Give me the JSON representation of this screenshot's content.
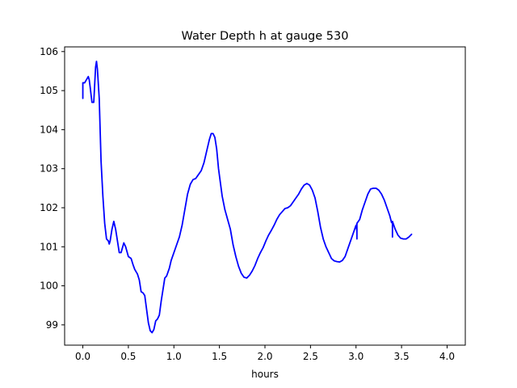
{
  "chart_data": {
    "type": "line",
    "title": "Water Depth h at gauge 530",
    "xlabel": "hours",
    "ylabel": "",
    "xlim": [
      -0.2,
      4.2
    ],
    "ylim": [
      98.48,
      106.12
    ],
    "xticks": [
      0.0,
      0.5,
      1.0,
      1.5,
      2.0,
      2.5,
      3.0,
      3.5,
      4.0
    ],
    "xtick_labels": [
      "0.0",
      "0.5",
      "1.0",
      "1.5",
      "2.0",
      "2.5",
      "3.0",
      "3.5",
      "4.0"
    ],
    "yticks": [
      99,
      100,
      101,
      102,
      103,
      104,
      105,
      106
    ],
    "ytick_labels": [
      "99",
      "100",
      "101",
      "102",
      "103",
      "104",
      "105",
      "106"
    ],
    "grid": false,
    "series": [
      {
        "color": "#0000ff",
        "points": [
          [
            0.0,
            104.8
          ],
          [
            0.0,
            105.2
          ],
          [
            0.02,
            105.2
          ],
          [
            0.04,
            105.28
          ],
          [
            0.06,
            105.36
          ],
          [
            0.07,
            105.28
          ],
          [
            0.08,
            105.1
          ],
          [
            0.1,
            104.7
          ],
          [
            0.12,
            104.7
          ],
          [
            0.14,
            105.6
          ],
          [
            0.15,
            105.75
          ],
          [
            0.16,
            105.55
          ],
          [
            0.18,
            104.8
          ],
          [
            0.2,
            103.2
          ],
          [
            0.22,
            102.3
          ],
          [
            0.24,
            101.6
          ],
          [
            0.26,
            101.2
          ],
          [
            0.28,
            101.15
          ],
          [
            0.29,
            101.07
          ],
          [
            0.3,
            101.15
          ],
          [
            0.32,
            101.45
          ],
          [
            0.34,
            101.65
          ],
          [
            0.36,
            101.45
          ],
          [
            0.38,
            101.15
          ],
          [
            0.4,
            100.85
          ],
          [
            0.42,
            100.85
          ],
          [
            0.45,
            101.1
          ],
          [
            0.47,
            101.0
          ],
          [
            0.5,
            100.75
          ],
          [
            0.53,
            100.7
          ],
          [
            0.55,
            100.55
          ],
          [
            0.57,
            100.42
          ],
          [
            0.6,
            100.3
          ],
          [
            0.62,
            100.15
          ],
          [
            0.64,
            99.85
          ],
          [
            0.66,
            99.82
          ],
          [
            0.68,
            99.75
          ],
          [
            0.7,
            99.4
          ],
          [
            0.72,
            99.05
          ],
          [
            0.74,
            98.85
          ],
          [
            0.76,
            98.8
          ],
          [
            0.78,
            98.88
          ],
          [
            0.8,
            99.1
          ],
          [
            0.82,
            99.15
          ],
          [
            0.84,
            99.25
          ],
          [
            0.86,
            99.6
          ],
          [
            0.88,
            99.9
          ],
          [
            0.9,
            100.2
          ],
          [
            0.92,
            100.25
          ],
          [
            0.95,
            100.45
          ],
          [
            0.97,
            100.65
          ],
          [
            1.0,
            100.85
          ],
          [
            1.03,
            101.05
          ],
          [
            1.06,
            101.25
          ],
          [
            1.09,
            101.55
          ],
          [
            1.12,
            101.95
          ],
          [
            1.15,
            102.35
          ],
          [
            1.18,
            102.6
          ],
          [
            1.21,
            102.72
          ],
          [
            1.24,
            102.75
          ],
          [
            1.27,
            102.85
          ],
          [
            1.3,
            102.95
          ],
          [
            1.33,
            103.15
          ],
          [
            1.36,
            103.45
          ],
          [
            1.39,
            103.75
          ],
          [
            1.41,
            103.9
          ],
          [
            1.43,
            103.9
          ],
          [
            1.45,
            103.8
          ],
          [
            1.47,
            103.5
          ],
          [
            1.49,
            103.0
          ],
          [
            1.51,
            102.65
          ],
          [
            1.53,
            102.3
          ],
          [
            1.56,
            101.95
          ],
          [
            1.59,
            101.7
          ],
          [
            1.62,
            101.45
          ],
          [
            1.65,
            101.05
          ],
          [
            1.68,
            100.75
          ],
          [
            1.71,
            100.5
          ],
          [
            1.74,
            100.32
          ],
          [
            1.77,
            100.22
          ],
          [
            1.8,
            100.2
          ],
          [
            1.83,
            100.27
          ],
          [
            1.86,
            100.38
          ],
          [
            1.89,
            100.52
          ],
          [
            1.92,
            100.7
          ],
          [
            1.95,
            100.85
          ],
          [
            1.98,
            100.98
          ],
          [
            2.01,
            101.15
          ],
          [
            2.04,
            101.3
          ],
          [
            2.07,
            101.42
          ],
          [
            2.1,
            101.55
          ],
          [
            2.13,
            101.7
          ],
          [
            2.16,
            101.82
          ],
          [
            2.19,
            101.9
          ],
          [
            2.22,
            101.98
          ],
          [
            2.25,
            102.0
          ],
          [
            2.28,
            102.05
          ],
          [
            2.31,
            102.15
          ],
          [
            2.34,
            102.25
          ],
          [
            2.37,
            102.35
          ],
          [
            2.4,
            102.48
          ],
          [
            2.43,
            102.58
          ],
          [
            2.46,
            102.62
          ],
          [
            2.49,
            102.58
          ],
          [
            2.52,
            102.45
          ],
          [
            2.55,
            102.25
          ],
          [
            2.58,
            101.9
          ],
          [
            2.61,
            101.5
          ],
          [
            2.64,
            101.2
          ],
          [
            2.67,
            101.0
          ],
          [
            2.7,
            100.85
          ],
          [
            2.73,
            100.7
          ],
          [
            2.76,
            100.64
          ],
          [
            2.79,
            100.62
          ],
          [
            2.82,
            100.61
          ],
          [
            2.85,
            100.65
          ],
          [
            2.88,
            100.75
          ],
          [
            2.91,
            100.95
          ],
          [
            2.94,
            101.15
          ],
          [
            2.97,
            101.35
          ],
          [
            3.0,
            101.55
          ],
          [
            3.01,
            101.4
          ],
          [
            3.01,
            101.2
          ],
          [
            3.01,
            101.6
          ],
          [
            3.04,
            101.7
          ],
          [
            3.07,
            101.95
          ],
          [
            3.1,
            102.15
          ],
          [
            3.13,
            102.35
          ],
          [
            3.16,
            102.48
          ],
          [
            3.19,
            102.5
          ],
          [
            3.22,
            102.5
          ],
          [
            3.25,
            102.45
          ],
          [
            3.28,
            102.35
          ],
          [
            3.31,
            102.2
          ],
          [
            3.34,
            102.0
          ],
          [
            3.37,
            101.8
          ],
          [
            3.39,
            101.62
          ],
          [
            3.4,
            101.65
          ],
          [
            3.4,
            101.25
          ],
          [
            3.4,
            101.65
          ],
          [
            3.43,
            101.45
          ],
          [
            3.46,
            101.3
          ],
          [
            3.49,
            101.22
          ],
          [
            3.52,
            101.2
          ],
          [
            3.55,
            101.2
          ],
          [
            3.58,
            101.25
          ],
          [
            3.61,
            101.32
          ]
        ]
      }
    ]
  }
}
